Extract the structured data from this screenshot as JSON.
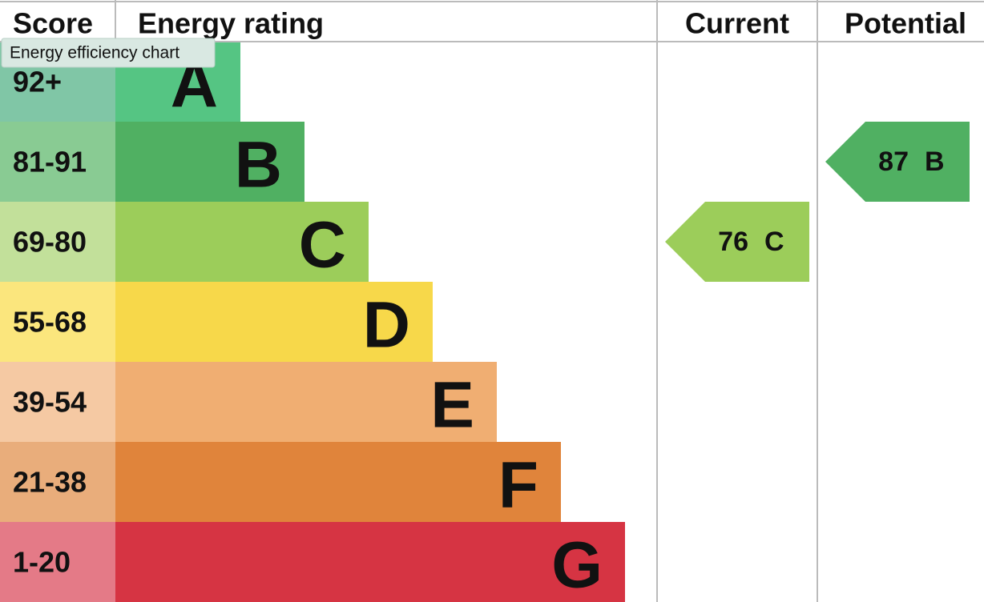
{
  "header": {
    "score": "Score",
    "rating": "Energy rating",
    "current": "Current",
    "potential": "Potential"
  },
  "tooltip": "Energy efficiency chart",
  "bands": [
    {
      "score": "92+",
      "letter": "A",
      "color": "#55c583",
      "score_color": "#80c6a6"
    },
    {
      "score": "81-91",
      "letter": "B",
      "color": "#50b062",
      "score_color": "#89cb93"
    },
    {
      "score": "69-80",
      "letter": "C",
      "color": "#9ccd5a",
      "score_color": "#c2e09a"
    },
    {
      "score": "55-68",
      "letter": "D",
      "color": "#f7d84a",
      "score_color": "#fbe67d"
    },
    {
      "score": "39-54",
      "letter": "E",
      "color": "#f0ae72",
      "score_color": "#f5c9a3"
    },
    {
      "score": "21-38",
      "letter": "F",
      "color": "#e0843b",
      "score_color": "#e9ad7b"
    },
    {
      "score": "1-20",
      "letter": "G",
      "color": "#d63443",
      "score_color": "#e47a87"
    }
  ],
  "current": {
    "value": 76,
    "band": "C",
    "color": "#9ccd5a"
  },
  "potential": {
    "value": 87,
    "band": "B",
    "color": "#50b062"
  }
}
